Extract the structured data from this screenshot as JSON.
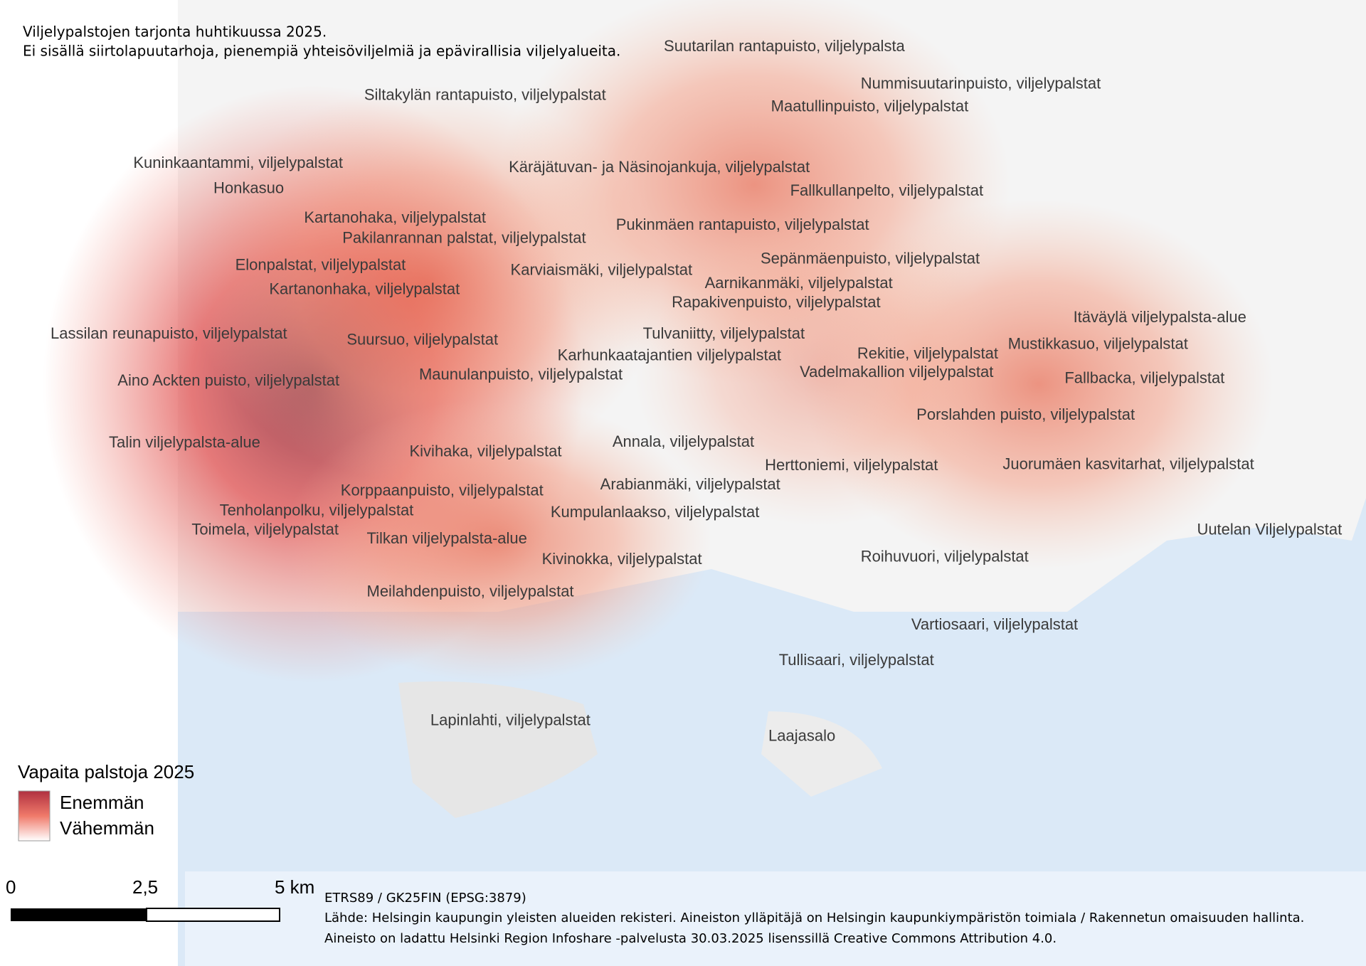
{
  "header": {
    "lines": [
      "Viljelypalstojen tarjonta huhtikuussa 2025.",
      "Ei sisällä siirtolapuutarhoja, pienempiä yhteisöviljelmiä ja epävirallisia viljelyalueita."
    ]
  },
  "places": [
    "Suutarilan rantapuisto, viljelypalsta",
    "Nummisuutarinpuisto, viljelypalstat",
    "Siltakylän rantapuisto, viljelypalstat",
    "Maatullinpuisto, viljelypalstat",
    "Kuninkaantammi, viljelypalstat",
    "Käräjätuvan- ja Näsinojankuja, viljelypalstat",
    "Honkasuo",
    "Fallkullanpelto, viljelypalstat",
    "Kartanohaka, viljelypalstat",
    "Pukinmäen rantapuisto, viljelypalstat",
    "Pakilanrannan palstat, viljelypalstat",
    "Sepänmäenpuisto, viljelypalstat",
    "Elonpalstat, viljelypalstat",
    "Karviaismäki, viljelypalstat",
    "Aarnikanmäki, viljelypalstat",
    "Kartanonhaka, viljelypalstat",
    "Rapakivenpuisto, viljelypalstat",
    "Itäväylä viljelypalsta-alue",
    "Lassilan reunapuisto, viljelypalstat",
    "Tulvaniitty, viljelypalstat",
    "Suursuo, viljelypalstat",
    "Mustikkasuo, viljelypalstat",
    "Rekitie, viljelypalstat",
    "Karhunkaatajantien viljelypalstat",
    "Vadelmakallion viljelypalstat",
    "Maunulanpuisto, viljelypalstat",
    "Fallbacka, viljelypalstat",
    "Aino Ackten puisto, viljelypalstat",
    "Porslahden puisto, viljelypalstat",
    "Annala, viljelypalstat",
    "Talin viljelypalsta-alue",
    "Kivihaka, viljelypalstat",
    "Herttoniemi, viljelypalstat",
    "Juorumäen kasvitarhat, viljelypalstat",
    "Arabianmäki, viljelypalstat",
    "Korppaanpuisto, viljelypalstat",
    "Tenholanpolku, viljelypalstat",
    "Kumpulanlaakso, viljelypalstat",
    "Toimela, viljelypalstat",
    "Uutelan Viljelypalstat",
    "Tilkan viljelypalsta-alue",
    "Kivinokka, viljelypalstat",
    "Roihuvuori, viljelypalstat",
    "Meilahdenpuisto, viljelypalstat",
    "Vartiosaari, viljelypalstat",
    "Tullisaari, viljelypalstat",
    "Lapinlahti, viljelypalstat",
    "Laajasalo"
  ],
  "legend": {
    "title": "Vapaita palstoja 2025",
    "high": "Enemmän",
    "low": "Vähemmän"
  },
  "scale_bar": {
    "labels": [
      "0",
      "2,5",
      "5 km"
    ]
  },
  "credits": {
    "lines": [
      "ETRS89 / GK25FIN (EPSG:3879)",
      "Lähde: Helsingin kaupungin yleisten alueiden rekisteri. Aineiston ylläpitäjä on Helsingin kaupunkiympäristön toimiala / Rakennetun omaisuuden hallinta.",
      "Aineisto on ladattu Helsinki Region Infoshare -palvelusta 30.03.2025 lisenssillä Creative Commons Attribution 4.0."
    ]
  }
}
